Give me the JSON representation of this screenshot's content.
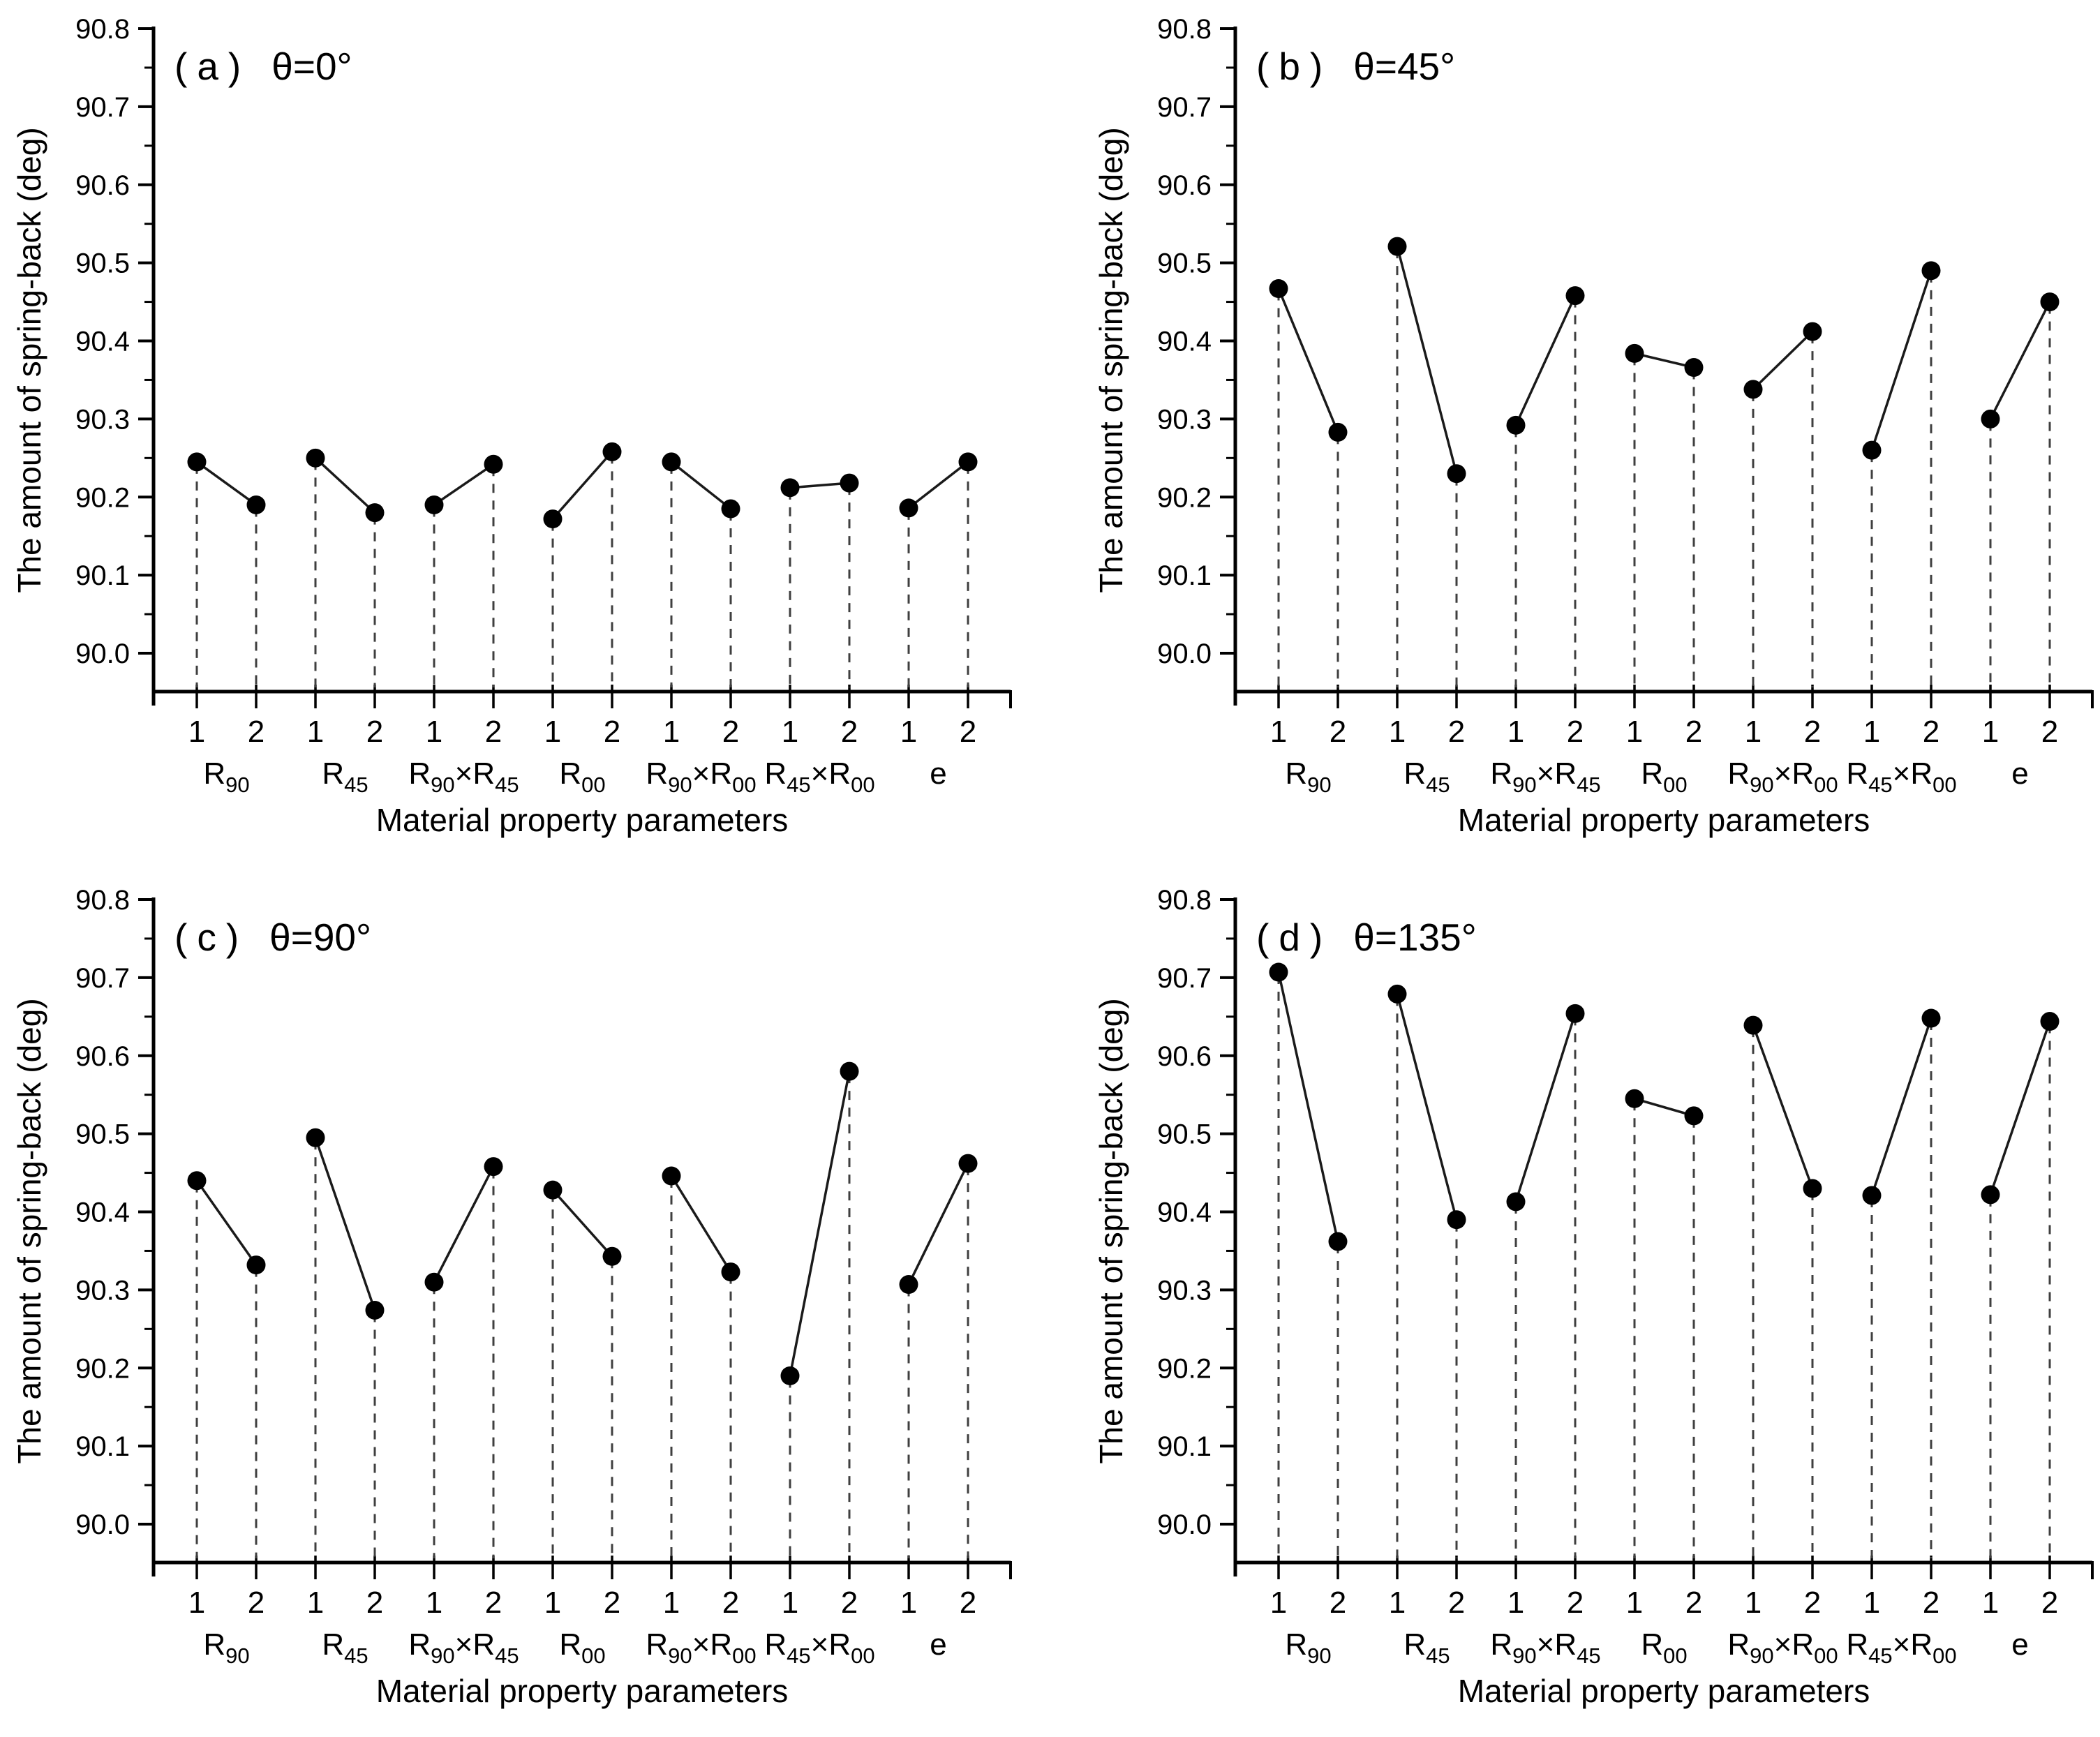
{
  "figure": {
    "panels_order": [
      "a",
      "b",
      "c",
      "d"
    ],
    "marker_color": "#000000",
    "series_line_color": "#1a1a1a",
    "drop_line_color": "#3f3f3f",
    "axis_color": "#000000",
    "text_color": "#000000"
  },
  "chart_data": [
    {
      "id": "a",
      "type": "line",
      "title_label": "(a)",
      "title_theta": "θ=0°",
      "xlabel": "Material property parameters",
      "ylabel": "The amount of spring-back (deg)",
      "ylim": [
        89.95,
        90.8
      ],
      "ytick_labels": [
        "90.0",
        "90.1",
        "90.2",
        "90.3",
        "90.4",
        "90.5",
        "90.6",
        "90.7",
        "90.8"
      ],
      "ytick_values": [
        90.0,
        90.1,
        90.2,
        90.3,
        90.4,
        90.5,
        90.6,
        90.7,
        90.8
      ],
      "yminor_values": [
        90.05,
        90.15,
        90.25,
        90.35,
        90.45,
        90.55,
        90.65,
        90.75
      ],
      "grid": false,
      "legend": "none",
      "level_labels": [
        "1",
        "2"
      ],
      "categories": [
        {
          "segs": [
            [
              "R",
              "90"
            ]
          ]
        },
        {
          "segs": [
            [
              "R",
              "45"
            ]
          ]
        },
        {
          "segs": [
            [
              "R",
              "90"
            ],
            [
              "×R",
              "45"
            ]
          ]
        },
        {
          "segs": [
            [
              "R",
              "00"
            ]
          ]
        },
        {
          "segs": [
            [
              "R",
              "90"
            ],
            [
              "×R",
              "00"
            ]
          ]
        },
        {
          "segs": [
            [
              "R",
              "45"
            ],
            [
              "×R",
              "00"
            ]
          ]
        },
        {
          "segs": [
            [
              "e",
              ""
            ]
          ]
        }
      ],
      "pairs": [
        [
          90.245,
          90.19
        ],
        [
          90.25,
          90.18
        ],
        [
          90.19,
          90.242
        ],
        [
          90.172,
          90.258
        ],
        [
          90.245,
          90.185
        ],
        [
          90.212,
          90.218
        ],
        [
          90.186,
          90.245
        ]
      ]
    },
    {
      "id": "b",
      "type": "line",
      "title_label": "(b)",
      "title_theta": "θ=45°",
      "xlabel": "Material property parameters",
      "ylabel": "The amount of spring-back (deg)",
      "ylim": [
        89.95,
        90.8
      ],
      "ytick_labels": [
        "90.0",
        "90.1",
        "90.2",
        "90.3",
        "90.4",
        "90.5",
        "90.6",
        "90.7",
        "90.8"
      ],
      "ytick_values": [
        90.0,
        90.1,
        90.2,
        90.3,
        90.4,
        90.5,
        90.6,
        90.7,
        90.8
      ],
      "yminor_values": [
        90.05,
        90.15,
        90.25,
        90.35,
        90.45,
        90.55,
        90.65,
        90.75
      ],
      "grid": false,
      "legend": "none",
      "level_labels": [
        "1",
        "2"
      ],
      "categories": [
        {
          "segs": [
            [
              "R",
              "90"
            ]
          ]
        },
        {
          "segs": [
            [
              "R",
              "45"
            ]
          ]
        },
        {
          "segs": [
            [
              "R",
              "90"
            ],
            [
              "×R",
              "45"
            ]
          ]
        },
        {
          "segs": [
            [
              "R",
              "00"
            ]
          ]
        },
        {
          "segs": [
            [
              "R",
              "90"
            ],
            [
              "×R",
              "00"
            ]
          ]
        },
        {
          "segs": [
            [
              "R",
              "45"
            ],
            [
              "×R",
              "00"
            ]
          ]
        },
        {
          "segs": [
            [
              "e",
              ""
            ]
          ]
        }
      ],
      "pairs": [
        [
          90.467,
          90.283
        ],
        [
          90.521,
          90.23
        ],
        [
          90.292,
          90.458
        ],
        [
          90.384,
          90.366
        ],
        [
          90.338,
          90.412
        ],
        [
          90.26,
          90.49
        ],
        [
          90.3,
          90.45
        ]
      ]
    },
    {
      "id": "c",
      "type": "line",
      "title_label": "(c)",
      "title_theta": "θ=90°",
      "xlabel": "Material property parameters",
      "ylabel": "The amount of spring-back (deg)",
      "ylim": [
        89.95,
        90.8
      ],
      "ytick_labels": [
        "90.0",
        "90.1",
        "90.2",
        "90.3",
        "90.4",
        "90.5",
        "90.6",
        "90.7",
        "90.8"
      ],
      "ytick_values": [
        90.0,
        90.1,
        90.2,
        90.3,
        90.4,
        90.5,
        90.6,
        90.7,
        90.8
      ],
      "yminor_values": [
        90.05,
        90.15,
        90.25,
        90.35,
        90.45,
        90.55,
        90.65,
        90.75
      ],
      "grid": false,
      "legend": "none",
      "level_labels": [
        "1",
        "2"
      ],
      "categories": [
        {
          "segs": [
            [
              "R",
              "90"
            ]
          ]
        },
        {
          "segs": [
            [
              "R",
              "45"
            ]
          ]
        },
        {
          "segs": [
            [
              "R",
              "90"
            ],
            [
              "×R",
              "45"
            ]
          ]
        },
        {
          "segs": [
            [
              "R",
              "00"
            ]
          ]
        },
        {
          "segs": [
            [
              "R",
              "90"
            ],
            [
              "×R",
              "00"
            ]
          ]
        },
        {
          "segs": [
            [
              "R",
              "45"
            ],
            [
              "×R",
              "00"
            ]
          ]
        },
        {
          "segs": [
            [
              "e",
              ""
            ]
          ]
        }
      ],
      "pairs": [
        [
          90.44,
          90.332
        ],
        [
          90.495,
          90.274
        ],
        [
          90.31,
          90.458
        ],
        [
          90.428,
          90.343
        ],
        [
          90.446,
          90.323
        ],
        [
          90.19,
          90.58
        ],
        [
          90.307,
          90.462
        ]
      ]
    },
    {
      "id": "d",
      "type": "line",
      "title_label": "(d)",
      "title_theta": "θ=135°",
      "xlabel": "Material property parameters",
      "ylabel": "The amount of spring-back (deg)",
      "ylim": [
        89.95,
        90.8
      ],
      "ytick_labels": [
        "90.0",
        "90.1",
        "90.2",
        "90.3",
        "90.4",
        "90.5",
        "90.6",
        "90.7",
        "90.8"
      ],
      "ytick_values": [
        90.0,
        90.1,
        90.2,
        90.3,
        90.4,
        90.5,
        90.6,
        90.7,
        90.8
      ],
      "yminor_values": [
        90.05,
        90.15,
        90.25,
        90.35,
        90.45,
        90.55,
        90.65,
        90.75
      ],
      "grid": false,
      "legend": "none",
      "level_labels": [
        "1",
        "2"
      ],
      "categories": [
        {
          "segs": [
            [
              "R",
              "90"
            ]
          ]
        },
        {
          "segs": [
            [
              "R",
              "45"
            ]
          ]
        },
        {
          "segs": [
            [
              "R",
              "90"
            ],
            [
              "×R",
              "45"
            ]
          ]
        },
        {
          "segs": [
            [
              "R",
              "00"
            ]
          ]
        },
        {
          "segs": [
            [
              "R",
              "90"
            ],
            [
              "×R",
              "00"
            ]
          ]
        },
        {
          "segs": [
            [
              "R",
              "45"
            ],
            [
              "×R",
              "00"
            ]
          ]
        },
        {
          "segs": [
            [
              "e",
              ""
            ]
          ]
        }
      ],
      "pairs": [
        [
          90.707,
          90.362
        ],
        [
          90.679,
          90.39
        ],
        [
          90.413,
          90.654
        ],
        [
          90.545,
          90.523
        ],
        [
          90.639,
          90.43
        ],
        [
          90.421,
          90.648
        ],
        [
          90.422,
          90.644
        ]
      ]
    }
  ]
}
